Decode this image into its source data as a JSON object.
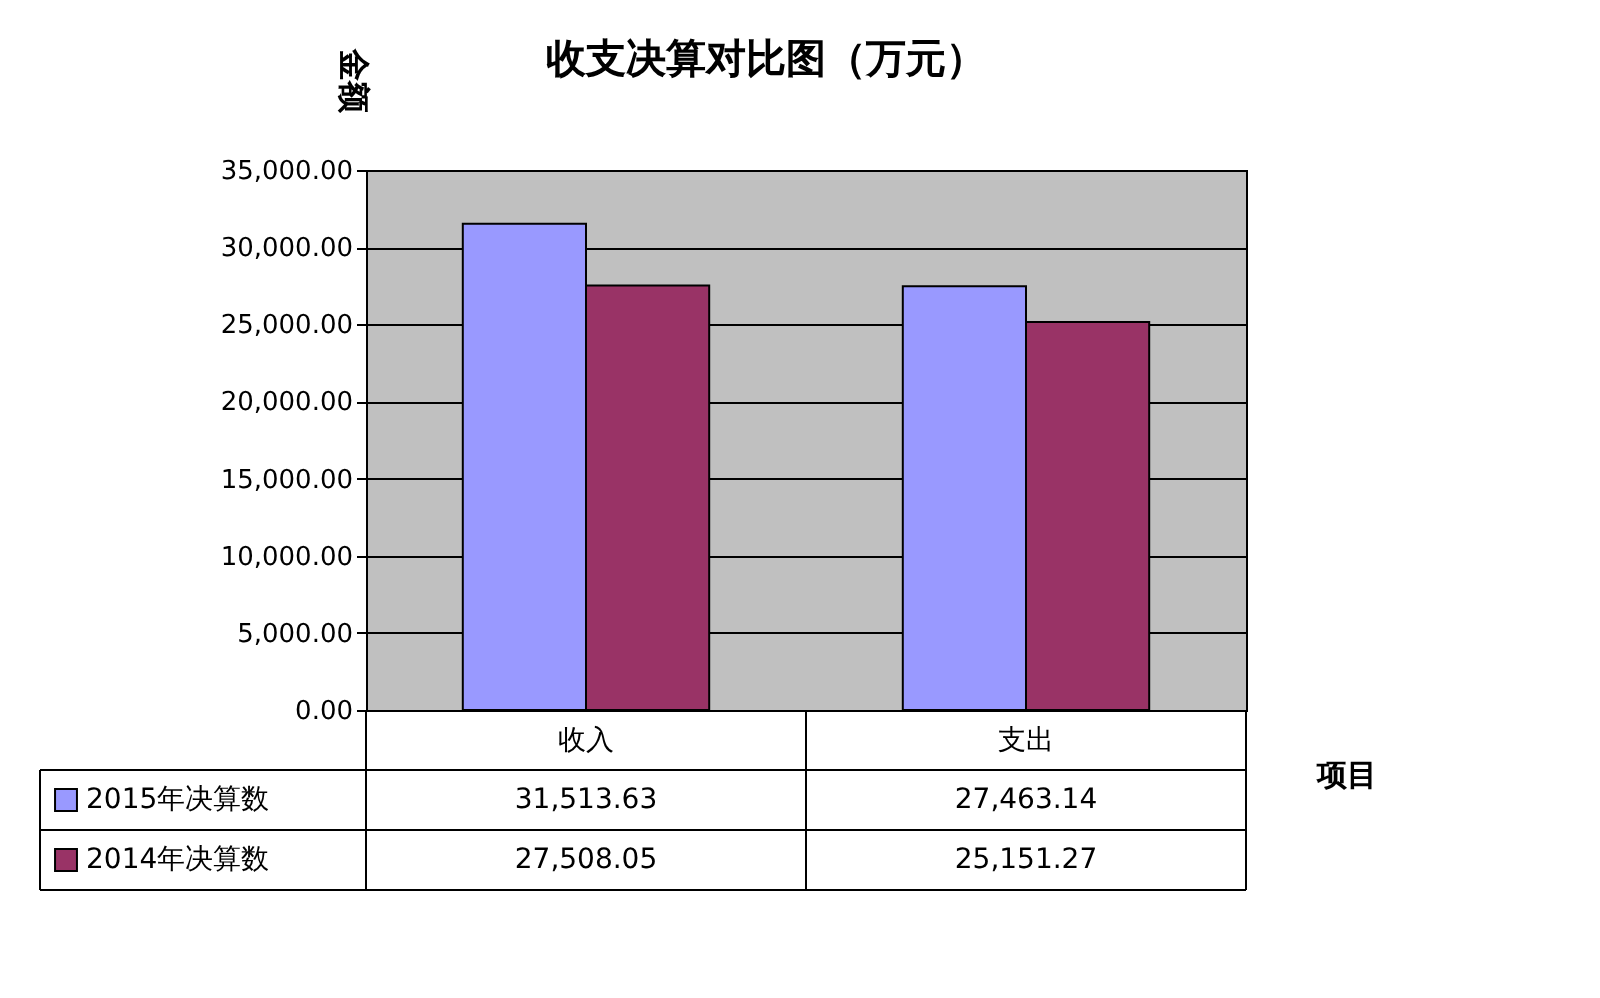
{
  "chart_data": {
    "type": "bar",
    "title": "收支决算对比图（万元）",
    "ylabel": "金额",
    "xlabel": "项目",
    "categories": [
      "收入",
      "支出"
    ],
    "series": [
      {
        "name": "2015年决算数",
        "color": "#9999ff",
        "values": [
          31513.63,
          27463.14
        ],
        "value_labels": [
          "31,513.63",
          "27,463.14"
        ]
      },
      {
        "name": "2014年决算数",
        "color": "#993366",
        "values": [
          27508.05,
          25151.27
        ],
        "value_labels": [
          "27,508.05",
          "25,151.27"
        ]
      }
    ],
    "ylim": [
      0,
      35000
    ],
    "yticks": [
      {
        "value": 0,
        "label": "0.00"
      },
      {
        "value": 5000,
        "label": "5,000.00"
      },
      {
        "value": 10000,
        "label": "10,000.00"
      },
      {
        "value": 15000,
        "label": "15,000.00"
      },
      {
        "value": 20000,
        "label": "20,000.00"
      },
      {
        "value": 25000,
        "label": "25,000.00"
      },
      {
        "value": 30000,
        "label": "30,000.00"
      },
      {
        "value": 35000,
        "label": "35,000.00"
      }
    ],
    "grid": "y",
    "legend": "bottom"
  }
}
